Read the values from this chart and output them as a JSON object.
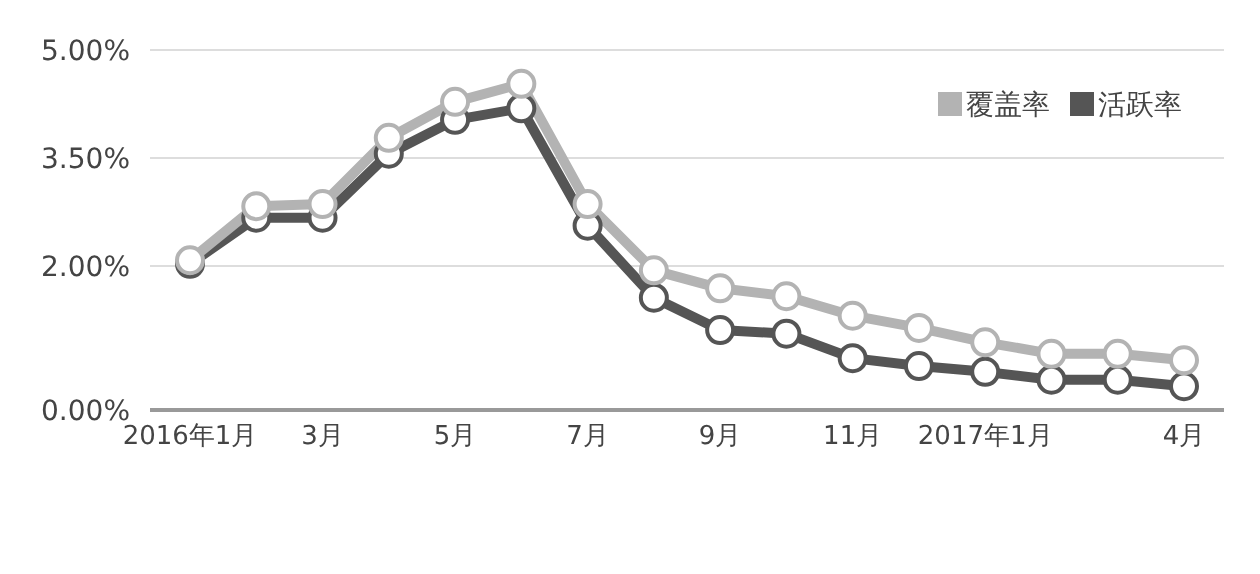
{
  "chart_data": {
    "type": "line",
    "categories": [
      "2016年1月",
      null,
      "3月",
      null,
      "5月",
      null,
      "7月",
      null,
      "9月",
      null,
      "11月",
      null,
      "2017年1月",
      null,
      null,
      "4月"
    ],
    "series": [
      {
        "name": "覆盖率",
        "color": "#b3b3b3",
        "values": [
          2.08,
          2.83,
          2.86,
          3.78,
          4.28,
          4.53,
          2.86,
          1.94,
          1.69,
          1.58,
          1.31,
          1.14,
          0.94,
          0.78,
          0.78,
          0.69
        ]
      },
      {
        "name": "活跃率",
        "color": "#555555",
        "values": [
          2.03,
          2.67,
          2.67,
          3.56,
          4.03,
          4.19,
          2.56,
          1.56,
          1.11,
          1.06,
          0.72,
          0.61,
          0.53,
          0.42,
          0.42,
          0.33
        ]
      }
    ],
    "ylim": [
      0,
      5.0
    ],
    "yticks": [
      {
        "value": 0,
        "label": "0.00%"
      },
      {
        "value": 2,
        "label": "2.00%"
      },
      {
        "value": 3.5,
        "label": "3.50%"
      },
      {
        "value": 5,
        "label": "5.00%"
      }
    ],
    "grid": "y",
    "legend": "top right",
    "marker": "circle",
    "line_style": "solid"
  }
}
